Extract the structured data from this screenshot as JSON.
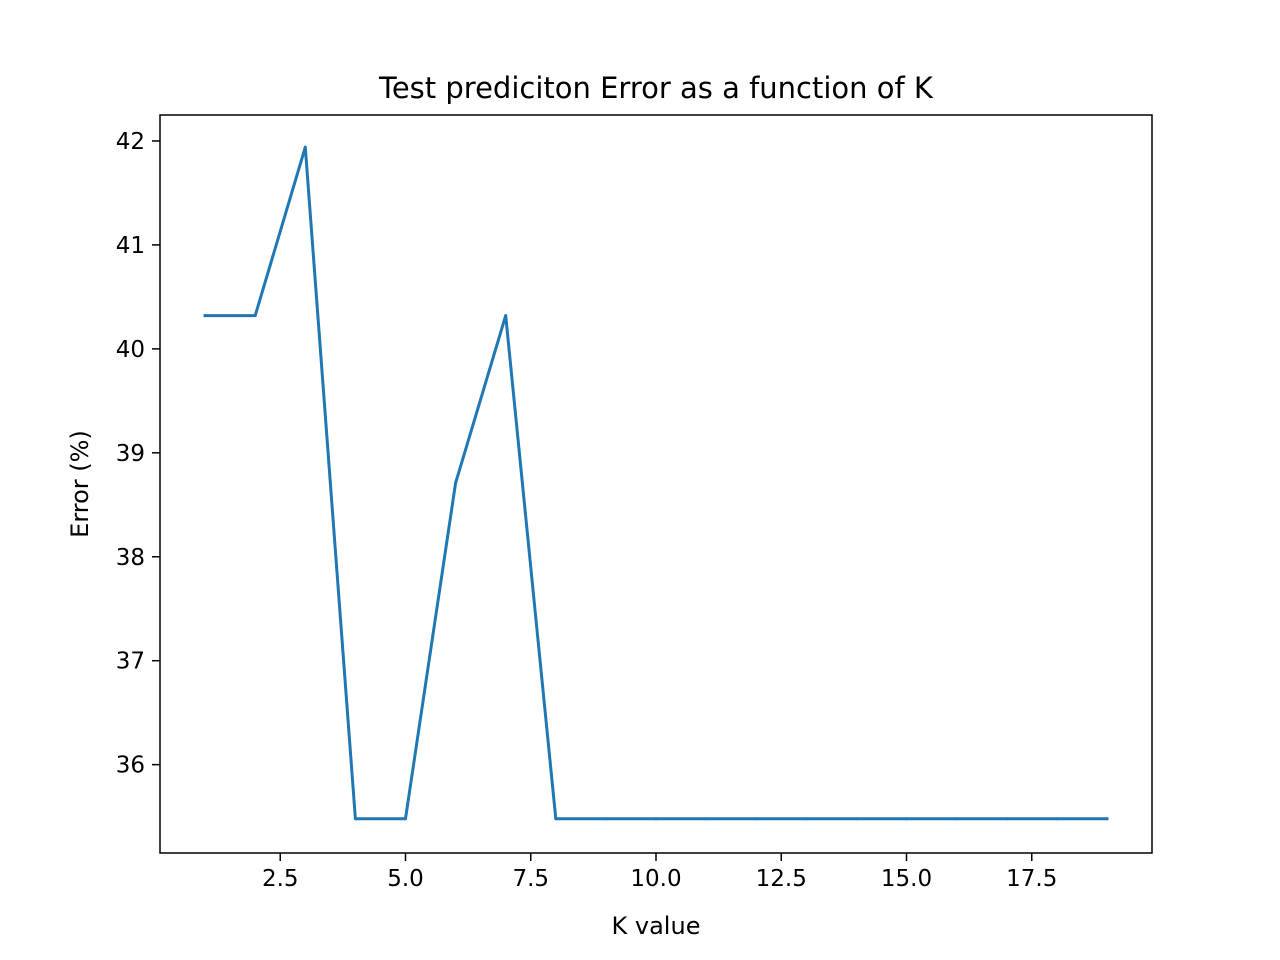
{
  "chart_data": {
    "type": "line",
    "title": "Test prediciton Error as a function of K",
    "xlabel": "K value",
    "ylabel": "Error (%)",
    "xlim": [
      0.1,
      19.9
    ],
    "ylim": [
      35.15,
      42.25
    ],
    "x_ticks": [
      2.5,
      5.0,
      7.5,
      10.0,
      12.5,
      15.0,
      17.5
    ],
    "x_tick_labels": [
      "2.5",
      "5.0",
      "7.5",
      "10.0",
      "12.5",
      "15.0",
      "17.5"
    ],
    "y_ticks": [
      36,
      37,
      38,
      39,
      40,
      41,
      42
    ],
    "y_tick_labels": [
      "36",
      "37",
      "38",
      "39",
      "40",
      "41",
      "42"
    ],
    "grid": false,
    "legend": "none",
    "series": [
      {
        "color": "#1f77b4",
        "x": [
          1,
          2,
          3,
          4,
          5,
          6,
          7,
          8,
          9,
          10,
          11,
          12,
          13,
          14,
          15,
          16,
          17,
          18,
          19
        ],
        "values": [
          40.32,
          40.32,
          41.94,
          35.48,
          35.48,
          38.71,
          40.32,
          35.48,
          35.48,
          35.48,
          35.48,
          35.48,
          35.48,
          35.48,
          35.48,
          35.48,
          35.48,
          35.48,
          35.48
        ]
      }
    ]
  }
}
